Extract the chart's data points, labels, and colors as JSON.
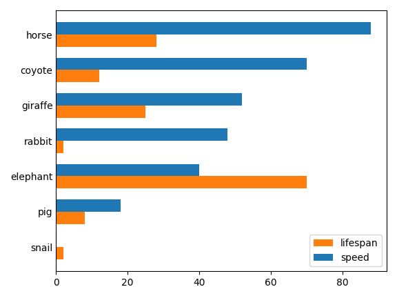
{
  "animals": [
    "horse",
    "coyote",
    "giraffe",
    "rabbit",
    "elephant",
    "pig",
    "snail"
  ],
  "speed": [
    88,
    70,
    52,
    48,
    40,
    18,
    0.03
  ],
  "lifespan": [
    28,
    12,
    25,
    2,
    70,
    8,
    2
  ],
  "speed_color": "#1f77b4",
  "lifespan_color": "#ff7f0e",
  "legend_labels": [
    "speed",
    "lifespan"
  ],
  "figsize": [
    5.76,
    4.32
  ],
  "dpi": 100
}
